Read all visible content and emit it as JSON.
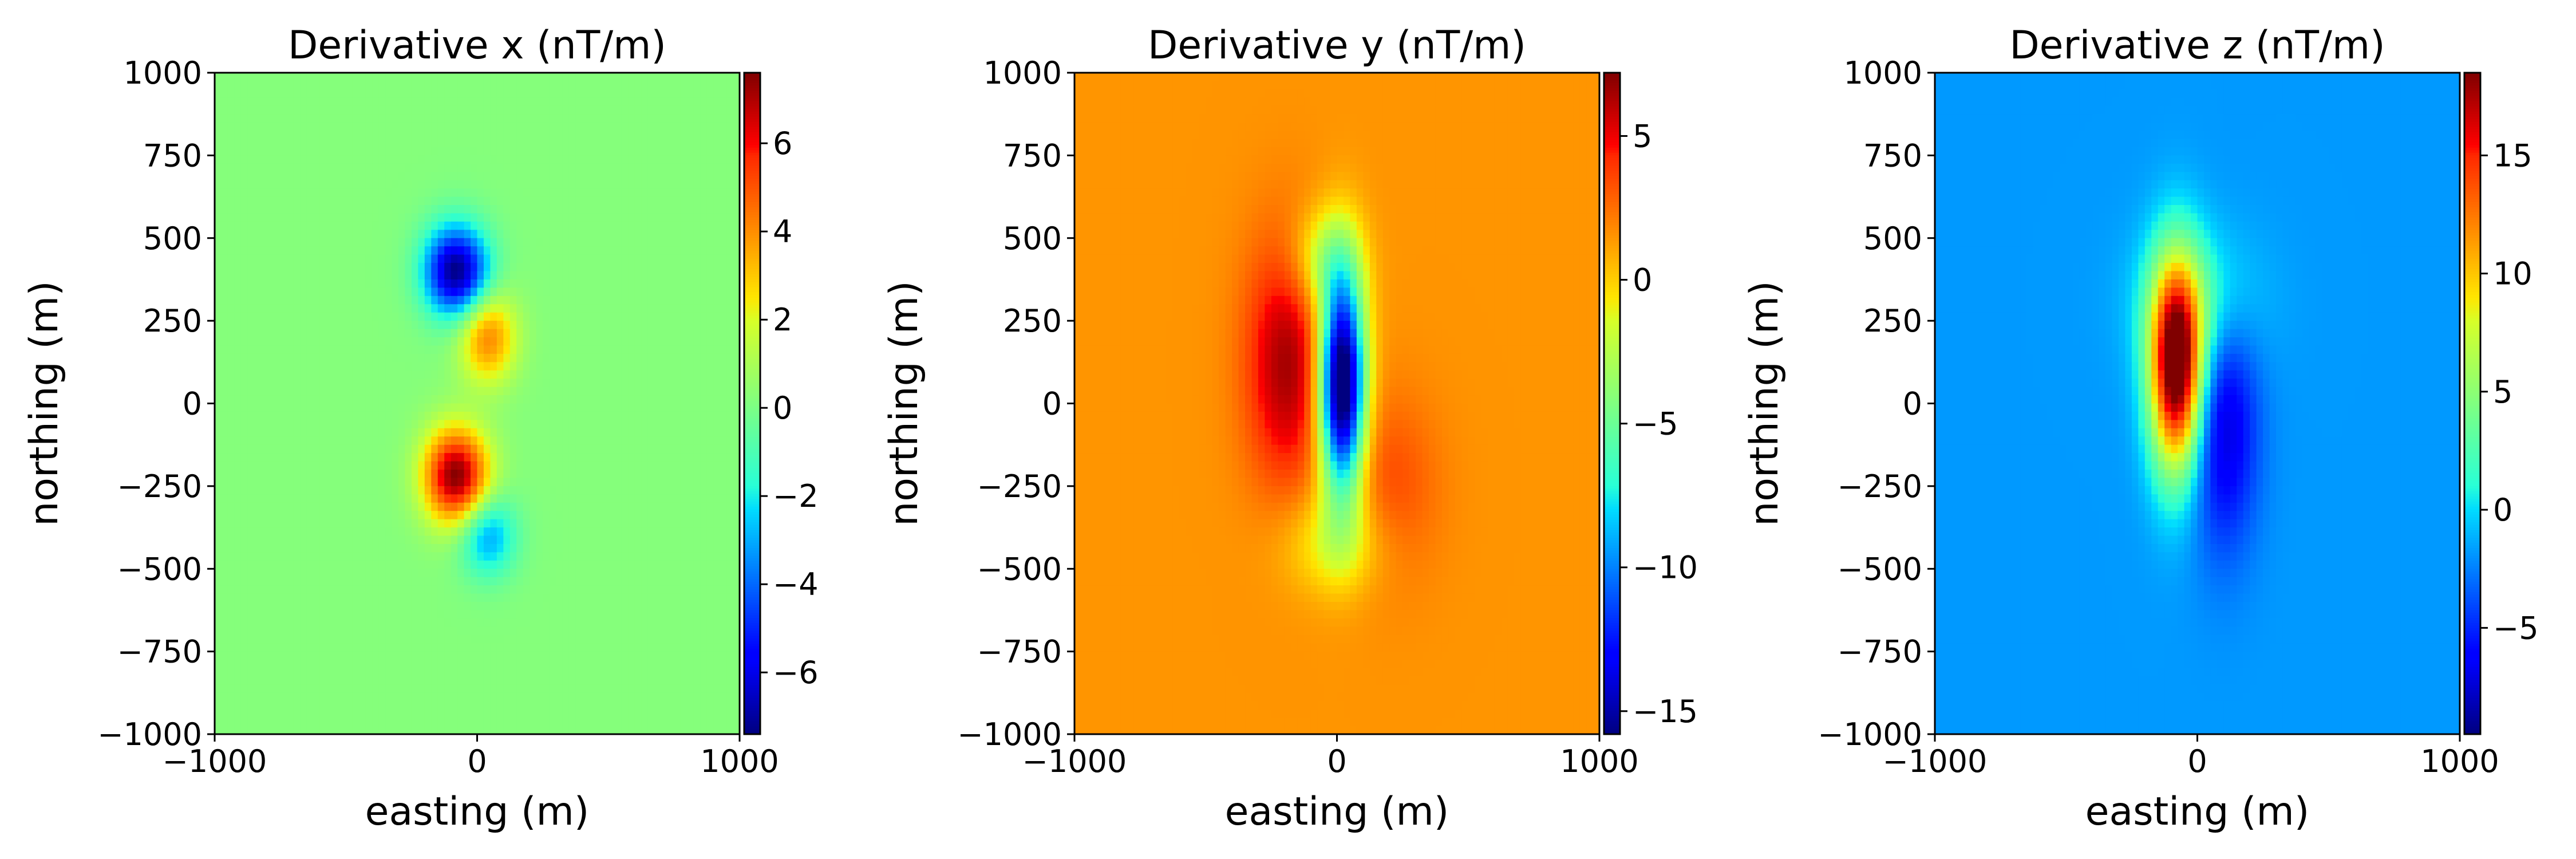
{
  "chart_data": [
    {
      "type": "heatmap",
      "title": "Derivative x (nT/m)",
      "xlabel": "easting (m)",
      "ylabel": "northing (m)",
      "xlim": [
        -1000,
        1000
      ],
      "ylim": [
        -1000,
        1000
      ],
      "xticks": [
        -1000,
        0,
        1000
      ],
      "yticks": [
        1000,
        750,
        500,
        250,
        0,
        -250,
        -500,
        -750,
        -1000
      ],
      "colormap": "jet",
      "clim": [
        -7.4,
        7.6
      ],
      "cbar_ticks": [
        6,
        4,
        2,
        0,
        -2,
        -4,
        -6
      ],
      "background_value": 0.2,
      "features": [
        {
          "x": -80,
          "y": 400,
          "value": -7.4,
          "sx": 85,
          "sy": 95
        },
        {
          "x": 40,
          "y": 200,
          "value": 4.2,
          "sx": 75,
          "sy": 95
        },
        {
          "x": -80,
          "y": -220,
          "value": 7.6,
          "sx": 85,
          "sy": 100
        },
        {
          "x": 40,
          "y": -400,
          "value": -3.2,
          "sx": 75,
          "sy": 85
        }
      ]
    },
    {
      "type": "heatmap",
      "title": "Derivative y (nT/m)",
      "xlabel": "easting (m)",
      "ylabel": "northing (m)",
      "xlim": [
        -1000,
        1000
      ],
      "ylim": [
        -1000,
        1000
      ],
      "xticks": [
        -1000,
        0,
        1000
      ],
      "yticks": [
        1000,
        750,
        500,
        250,
        0,
        -250,
        -500,
        -750,
        -1000
      ],
      "colormap": "jet",
      "clim": [
        -15.8,
        7.2
      ],
      "cbar_ticks": [
        5,
        0,
        -5,
        -10,
        -15
      ],
      "background_value": 1.5,
      "features": [
        {
          "x": -190,
          "y": 120,
          "value": 6.5,
          "sx": 110,
          "sy": 260
        },
        {
          "x": 20,
          "y": 60,
          "value": -18.5,
          "sx": 60,
          "sy": 230
        },
        {
          "x": 200,
          "y": -260,
          "value": 3.5,
          "sx": 130,
          "sy": 200
        },
        {
          "x": -50,
          "y": 430,
          "value": -2.5,
          "sx": 90,
          "sy": 110
        },
        {
          "x": 0,
          "y": -420,
          "value": -1.5,
          "sx": 140,
          "sy": 110
        }
      ]
    },
    {
      "type": "heatmap",
      "title": "Derivative z (nT/m)",
      "xlabel": "easting (m)",
      "ylabel": "northing (m)",
      "xlim": [
        -1000,
        1000
      ],
      "ylim": [
        -1000,
        1000
      ],
      "xticks": [
        -1000,
        0,
        1000
      ],
      "yticks": [
        1000,
        750,
        500,
        250,
        0,
        -250,
        -500,
        -750,
        -1000
      ],
      "colormap": "jet",
      "clim": [
        -9.5,
        18.5
      ],
      "cbar_ticks": [
        15,
        10,
        5,
        0,
        -5
      ],
      "background_value": -1.8,
      "features": [
        {
          "x": -80,
          "y": 110,
          "value": 20.5,
          "sx": 70,
          "sy": 220
        },
        {
          "x": 100,
          "y": -60,
          "value": -7.5,
          "sx": 90,
          "sy": 260
        },
        {
          "x": 0,
          "y": 300,
          "value": 2.5,
          "sx": 150,
          "sy": 160
        }
      ]
    }
  ]
}
